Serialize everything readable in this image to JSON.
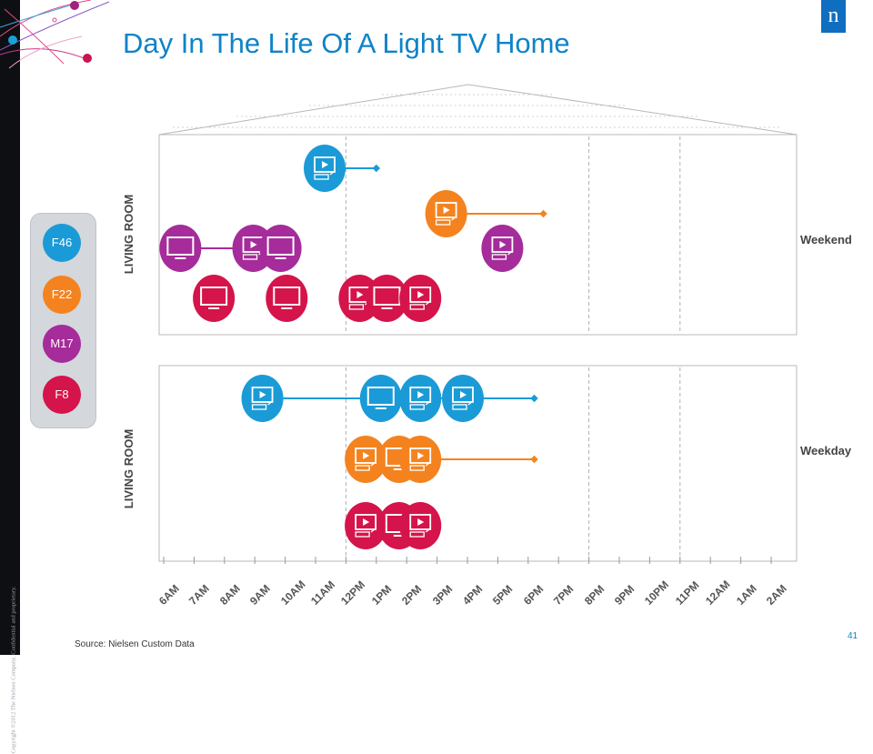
{
  "title": "Day In The Life Of A Light TV Home",
  "copyright": "Copyright ©2012 The Nielsen Company. Confidential and proprietary.",
  "logo": "n",
  "source": "Source:  Nielsen Custom Data",
  "page_number": "41",
  "colors": {
    "F46": "#1a9bd7",
    "F22": "#f4831f",
    "M17": "#a52c9a",
    "F8": "#d4144a",
    "title": "#0f83c7"
  },
  "people": [
    {
      "label": "F46",
      "color": "#1a9bd7"
    },
    {
      "label": "F22",
      "color": "#f4831f"
    },
    {
      "label": "M17",
      "color": "#a52c9a"
    },
    {
      "label": "F8",
      "color": "#d4144a"
    }
  ],
  "rooms": {
    "weekend": "LIVING ROOM",
    "weekday": "LIVING ROOM"
  },
  "day_labels": {
    "weekend": "Weekend",
    "weekday": "Weekday"
  },
  "chart_data": {
    "type": "timeline",
    "x_categories": [
      "6AM",
      "7AM",
      "8AM",
      "9AM",
      "10AM",
      "11AM",
      "12PM",
      "1PM",
      "2PM",
      "3PM",
      "4PM",
      "5PM",
      "6PM",
      "7PM",
      "8PM",
      "9PM",
      "10PM",
      "11PM",
      "12AM",
      "1AM",
      "2AM"
    ],
    "dividers": [
      "12PM",
      "8PM",
      "11PM"
    ],
    "panels": [
      {
        "label": "Weekend",
        "room": "LIVING ROOM",
        "rows": [
          {
            "person": "F46",
            "color": "#1a9bd7",
            "icons": [
              {
                "t": 5.3,
                "kind": "video"
              }
            ],
            "line": [
              5.3,
              7.0
            ]
          },
          {
            "person": "F22",
            "color": "#f4831f",
            "icons": [
              {
                "t": 9.3,
                "kind": "video"
              }
            ],
            "line": [
              9.3,
              12.5
            ]
          },
          {
            "person": "M17",
            "color": "#a52c9a",
            "icons": [
              {
                "t": 0.55,
                "kind": "tv"
              },
              {
                "t": 2.95,
                "kind": "video"
              },
              {
                "t": 3.85,
                "kind": "tv"
              },
              {
                "t": 11.15,
                "kind": "video"
              }
            ],
            "line": [
              0.55,
              2.95
            ]
          },
          {
            "person": "F8",
            "color": "#d4144a",
            "icons": [
              {
                "t": 1.65,
                "kind": "tv"
              },
              {
                "t": 4.05,
                "kind": "tv"
              },
              {
                "t": 6.45,
                "kind": "video"
              },
              {
                "t": 7.35,
                "kind": "tv"
              },
              {
                "t": 8.45,
                "kind": "video"
              }
            ],
            "line": null
          }
        ]
      },
      {
        "label": "Weekday",
        "room": "LIVING ROOM",
        "rows": [
          {
            "person": "F46",
            "color": "#1a9bd7",
            "icons": [
              {
                "t": 3.25,
                "kind": "video"
              },
              {
                "t": 7.15,
                "kind": "tv"
              },
              {
                "t": 8.45,
                "kind": "video"
              },
              {
                "t": 9.85,
                "kind": "video"
              }
            ],
            "line": [
              3.25,
              12.2
            ]
          },
          {
            "person": "F22",
            "color": "#f4831f",
            "icons": [
              {
                "t": 6.65,
                "kind": "video"
              },
              {
                "t": 7.75,
                "kind": "tv"
              },
              {
                "t": 8.45,
                "kind": "video"
              }
            ],
            "line": [
              6.65,
              12.2
            ]
          },
          {
            "person": "F8",
            "color": "#d4144a",
            "icons": [
              {
                "t": 6.65,
                "kind": "video"
              },
              {
                "t": 7.75,
                "kind": "tv"
              },
              {
                "t": 8.45,
                "kind": "video"
              }
            ],
            "line": null
          }
        ]
      }
    ]
  }
}
